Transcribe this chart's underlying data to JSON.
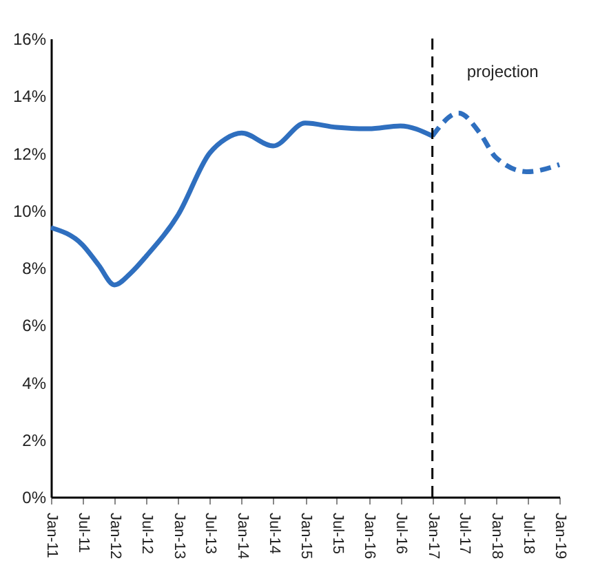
{
  "chart_data": {
    "type": "line",
    "series": [
      {
        "color": "#2f6fbf",
        "line_style": "solid",
        "x": [
          "2011-01",
          "2011-07",
          "2011-10",
          "2012-01",
          "2012-04",
          "2012-07",
          "2013-01",
          "2013-07",
          "2013-10",
          "2014-01",
          "2014-07",
          "2015-01",
          "2015-07",
          "2016-01",
          "2016-07",
          "2017-01"
        ],
        "values": [
          9.4,
          8.8,
          8.1,
          7.4,
          7.8,
          8.4,
          9.85,
          12.0,
          12.5,
          12.7,
          12.25,
          13.05,
          12.9,
          12.85,
          12.95,
          12.6
        ]
      },
      {
        "color": "#2f6fbf",
        "line_style": "dashed",
        "x": [
          "2017-01",
          "2017-06",
          "2017-10",
          "2018-01",
          "2018-07",
          "2019-01"
        ],
        "values": [
          12.6,
          13.4,
          12.7,
          11.85,
          11.35,
          11.6
        ]
      }
    ],
    "xlim": [
      "2011-01",
      "2019-01"
    ],
    "xticks": [
      {
        "value": "2011-01",
        "label": "Jan-11"
      },
      {
        "value": "2011-07",
        "label": "Jul-11"
      },
      {
        "value": "2012-01",
        "label": "Jan-12"
      },
      {
        "value": "2012-07",
        "label": "Jul-12"
      },
      {
        "value": "2013-01",
        "label": "Jan-13"
      },
      {
        "value": "2013-07",
        "label": "Jul-13"
      },
      {
        "value": "2014-01",
        "label": "Jan-14"
      },
      {
        "value": "2014-07",
        "label": "Jul-14"
      },
      {
        "value": "2015-01",
        "label": "Jan-15"
      },
      {
        "value": "2015-07",
        "label": "Jul-15"
      },
      {
        "value": "2016-01",
        "label": "Jan-16"
      },
      {
        "value": "2016-07",
        "label": "Jul-16"
      },
      {
        "value": "2017-01",
        "label": "Jan-17"
      },
      {
        "value": "2017-07",
        "label": "Jul-17"
      },
      {
        "value": "2018-01",
        "label": "Jan-18"
      },
      {
        "value": "2018-07",
        "label": "Jul-18"
      },
      {
        "value": "2019-01",
        "label": "Jan-19"
      }
    ],
    "ylim": [
      0,
      16
    ],
    "yticks": [
      {
        "value": 0,
        "label": "0%"
      },
      {
        "value": 2,
        "label": "2%"
      },
      {
        "value": 4,
        "label": "4%"
      },
      {
        "value": 6,
        "label": "6%"
      },
      {
        "value": 8,
        "label": "8%"
      },
      {
        "value": 10,
        "label": "10%"
      },
      {
        "value": 12,
        "label": "12%"
      },
      {
        "value": 14,
        "label": "14%"
      },
      {
        "value": 16,
        "label": "16%"
      }
    ],
    "ref_lines": [
      {
        "axis": "x",
        "value": "2017-01",
        "label": "projection",
        "color": "#000000",
        "line_style": "dashed"
      }
    ],
    "grid": false,
    "marker": "none"
  }
}
